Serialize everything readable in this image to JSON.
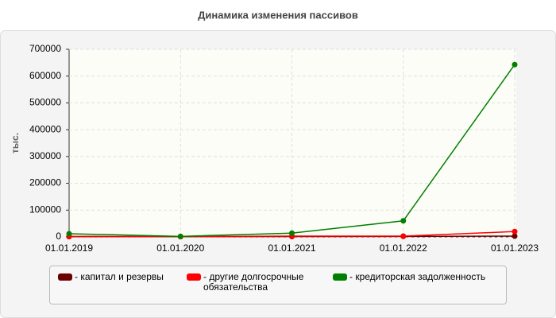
{
  "chart_data": {
    "type": "line",
    "title": "Динамика изменения пассивов",
    "y_label": "тыс.",
    "categories": [
      "01.01.2019",
      "01.01.2020",
      "01.01.2021",
      "01.01.2022",
      "01.01.2023"
    ],
    "series": [
      {
        "name": "- капитал и резервы",
        "color": "#6b0000",
        "values": [
          1000,
          1000,
          1500,
          2000,
          3000
        ]
      },
      {
        "name": "- другие долгосрочные обязательства",
        "color": "#ff0000",
        "values": [
          2000,
          1000,
          3000,
          3000,
          20000
        ]
      },
      {
        "name": "- кредиторская задолженность",
        "color": "#008000",
        "values": [
          12000,
          2000,
          14000,
          60000,
          643000
        ]
      }
    ],
    "ylim": [
      0,
      700000
    ],
    "yticks": [
      0,
      100000,
      200000,
      300000,
      400000,
      500000,
      600000,
      700000
    ],
    "grid": true
  }
}
